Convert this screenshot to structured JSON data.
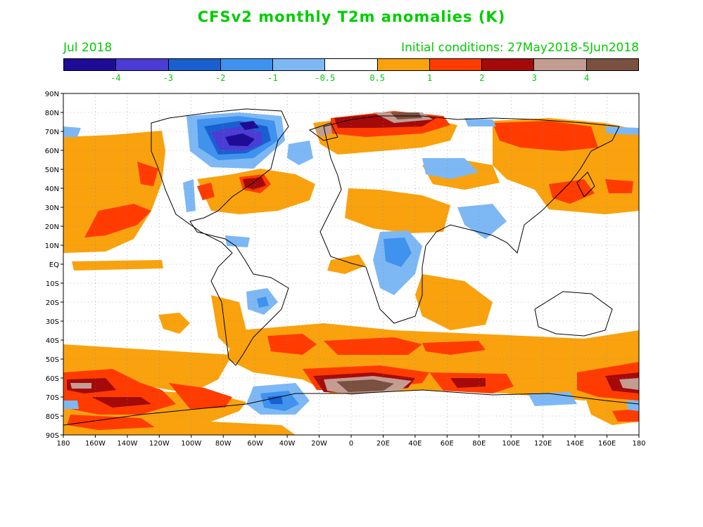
{
  "title": "CFSv2 monthly T2m anomalies (K)",
  "valid_month": "Jul 2018",
  "initial_conditions": "Initial conditions: 27May2018-5Jun2018",
  "colorbar": {
    "colors": [
      "#1f0c96",
      "#4a3cd4",
      "#1a5fd0",
      "#3f92ee",
      "#7db8f5",
      "#ffffff",
      "#f9a20d",
      "#ff3b00",
      "#a50a0a",
      "#c39d91",
      "#7a5040"
    ],
    "labels": [
      "-4",
      "-3",
      "-2",
      "-1",
      "-0.5",
      "0.5",
      "1",
      "2",
      "3",
      "4"
    ]
  },
  "map": {
    "lat_labels": [
      "90N",
      "80N",
      "70N",
      "60N",
      "50N",
      "40N",
      "30N",
      "20N",
      "10N",
      "EQ",
      "10S",
      "20S",
      "30S",
      "40S",
      "50S",
      "60S",
      "70S",
      "80S",
      "90S"
    ],
    "lon_labels": [
      "180",
      "160W",
      "140W",
      "120W",
      "100W",
      "80W",
      "60W",
      "40W",
      "20W",
      "0",
      "20E",
      "40E",
      "60E",
      "80E",
      "100E",
      "120E",
      "140E",
      "160E",
      "180"
    ]
  }
}
